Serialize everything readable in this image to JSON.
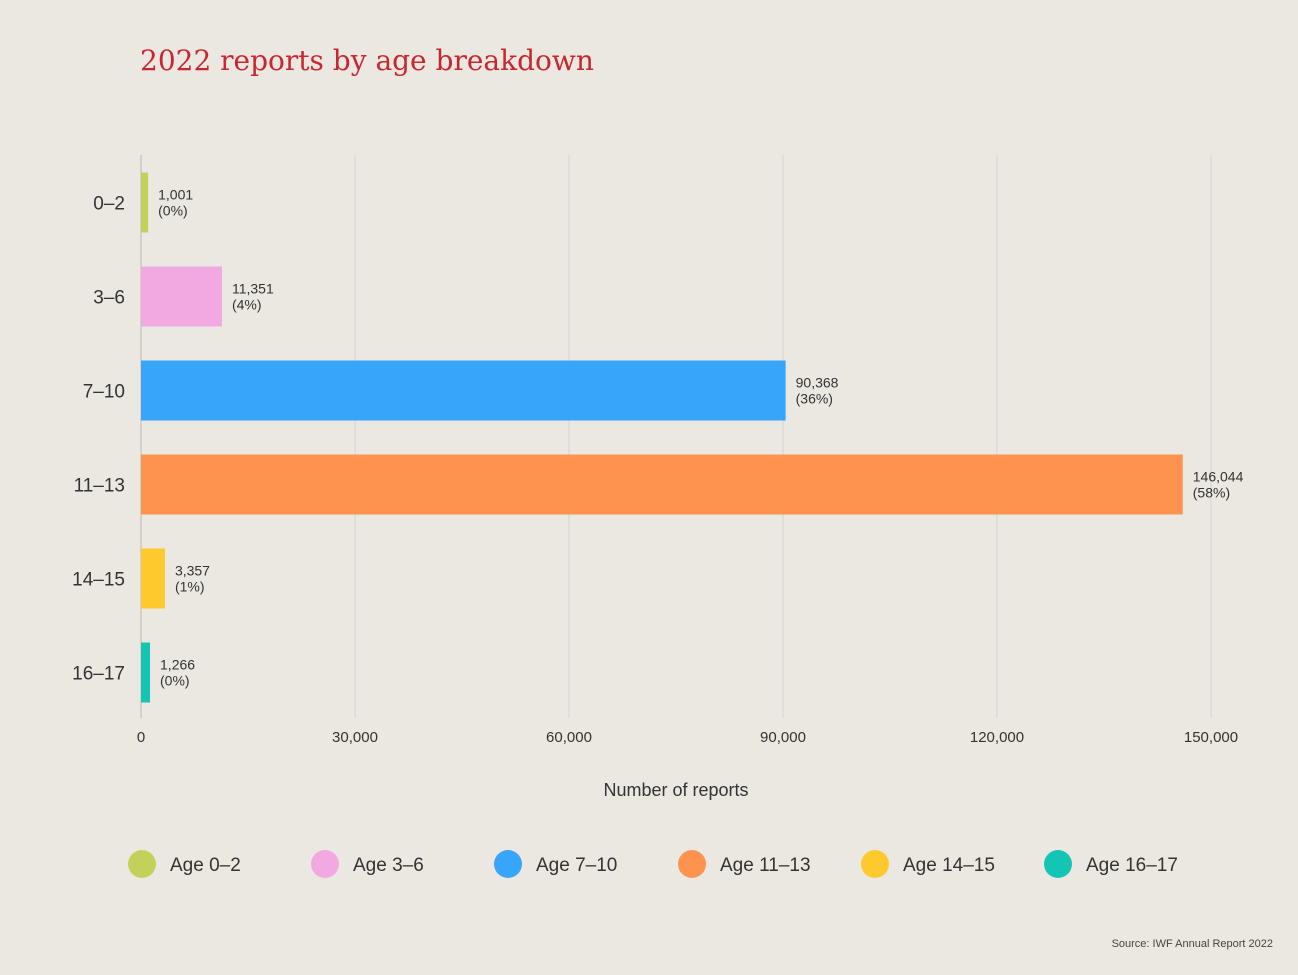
{
  "title": "2022 reports by age breakdown",
  "source": "Source: IWF Annual Report 2022",
  "chart_data": {
    "type": "bar",
    "orientation": "horizontal",
    "title": "2022 reports by age breakdown",
    "xlabel": "Number of reports",
    "ylabel": "",
    "xlim": [
      0,
      150000
    ],
    "xticks": [
      0,
      30000,
      60000,
      90000,
      120000,
      150000
    ],
    "xtick_labels": [
      "0",
      "30,000",
      "60,000",
      "90,000",
      "120,000",
      "150,000"
    ],
    "grid": true,
    "legend_position": "bottom",
    "categories": [
      "0–2",
      "3–6",
      "7–10",
      "11–13",
      "14–15",
      "16–17"
    ],
    "values": [
      1001,
      11351,
      90368,
      146044,
      3357,
      1266
    ],
    "value_labels": [
      "1,001",
      "11,351",
      "90,368",
      "146,044",
      "3,357",
      "1,266"
    ],
    "percent_labels": [
      "(0%)",
      "(4%)",
      "(36%)",
      "(58%)",
      "(1%)",
      "(0%)"
    ],
    "legend": [
      "Age 0–2",
      "Age 3–6",
      "Age 7–10",
      "Age 11–13",
      "Age 14–15",
      "Age 16–17"
    ],
    "colors": [
      "#c3d15a",
      "#f2a8e1",
      "#36a5fa",
      "#fe9350",
      "#fec92c",
      "#15c5b3"
    ]
  }
}
